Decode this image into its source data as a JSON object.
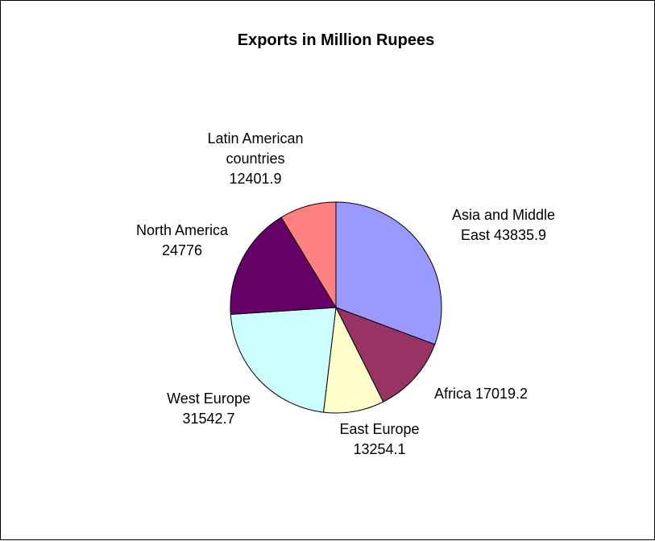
{
  "chart_data": {
    "type": "pie",
    "title": "Exports in Million Rupees",
    "start_angle_deg": 0,
    "direction": "clockwise",
    "slices": [
      {
        "label": [
          "Asia and Middle",
          "East 43835.9"
        ],
        "name": "Asia and Middle East",
        "value": 43835.9,
        "color": "#9999FF"
      },
      {
        "label": [
          "Africa 17019.2"
        ],
        "name": "Africa",
        "value": 17019.2,
        "color": "#993366"
      },
      {
        "label": [
          "East Europe",
          "13254.1"
        ],
        "name": "East Europe",
        "value": 13254.1,
        "color": "#FFFFCC"
      },
      {
        "label": [
          "West Europe",
          "31542.7"
        ],
        "name": "West Europe",
        "value": 31542.7,
        "color": "#CCFFFF"
      },
      {
        "label": [
          "North America",
          "24776"
        ],
        "name": "North America",
        "value": 24776,
        "color": "#660066"
      },
      {
        "label": [
          "Latin American",
          "countries",
          "12401.9"
        ],
        "name": "Latin American countries",
        "value": 12401.9,
        "color": "#FF8080"
      }
    ]
  }
}
